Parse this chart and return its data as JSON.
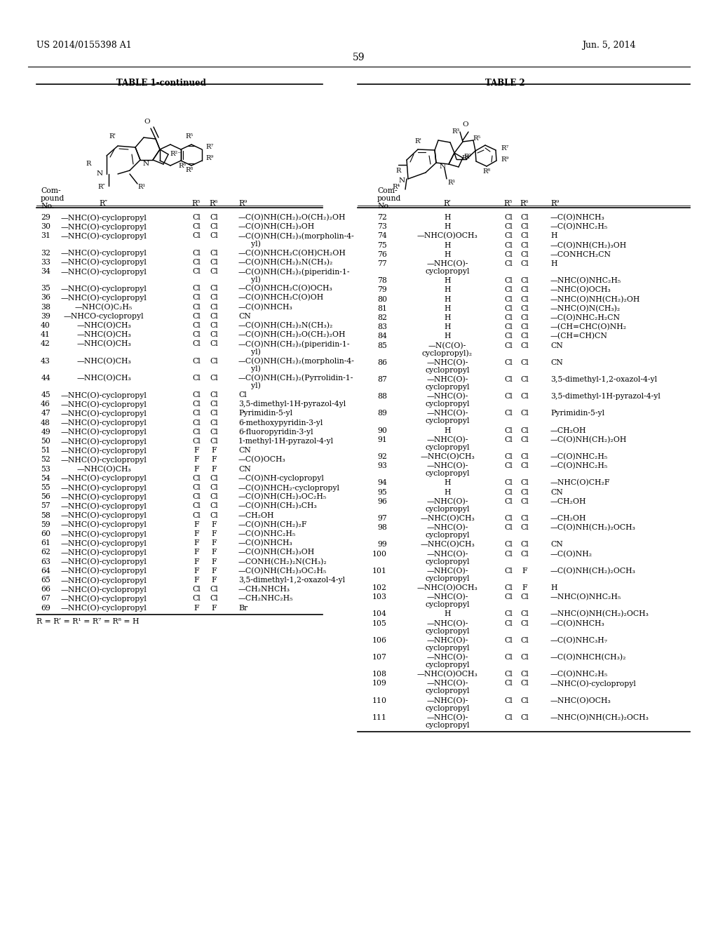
{
  "patent_number": "US 2014/0155398 A1",
  "patent_date": "Jun. 5, 2014",
  "page_number": "59",
  "table1_title": "TABLE 1-continued",
  "table2_title": "TABLE 2",
  "table1_footnote": "R = R’ = R¹ = R⁷ = R⁸ = H",
  "table1_rows": [
    [
      "29",
      "—NHC(O)-cyclopropyl",
      "Cl",
      "Cl",
      "—C(O)NH(CH₂)₂O(CH₂)₂OH"
    ],
    [
      "30",
      "—NHC(O)-cyclopropyl",
      "Cl",
      "Cl",
      "—C(O)NH(CH₂)₃OH"
    ],
    [
      "31",
      "—NHC(O)-cyclopropyl",
      "Cl",
      "Cl",
      "—C(O)NH(CH₂)₃(morpholin-4-\nyl)"
    ],
    [
      "32",
      "—NHC(O)-cyclopropyl",
      "Cl",
      "Cl",
      "—C(O)NHCH₂C(OH)CH₂OH"
    ],
    [
      "33",
      "—NHC(O)-cyclopropyl",
      "Cl",
      "Cl",
      "—C(O)NH(CH₂)₂N(CH₃)₂"
    ],
    [
      "34",
      "—NHC(O)-cyclopropyl",
      "Cl",
      "Cl",
      "—C(O)NH(CH₂)₂(piperidin-1-\nyl)"
    ],
    [
      "35",
      "—NHC(O)-cyclopropyl",
      "Cl",
      "Cl",
      "—C(O)NHCH₂C(O)OCH₃"
    ],
    [
      "36",
      "—NHC(O)-cyclopropyl",
      "Cl",
      "Cl",
      "—C(O)NHCH₂C(O)OH"
    ],
    [
      "38",
      "—NHC(O)C₂H₅",
      "Cl",
      "Cl",
      "—C(O)NHCH₃"
    ],
    [
      "39",
      "—NHCO-cyclopropyl",
      "Cl",
      "Cl",
      "CN"
    ],
    [
      "40",
      "—NHC(O)CH₃",
      "Cl",
      "Cl",
      "—C(O)NH(CH₂)₂N(CH₃)₂"
    ],
    [
      "41",
      "—NHC(O)CH₃",
      "Cl",
      "Cl",
      "—C(O)NH(CH₂)₂O(CH₂)₂OH"
    ],
    [
      "42",
      "—NHC(O)CH₃",
      "Cl",
      "Cl",
      "—C(O)NH(CH₂)₂(piperidin-1-\nyl)"
    ],
    [
      "43",
      "—NHC(O)CH₃",
      "Cl",
      "Cl",
      "—C(O)NH(CH₂)₂(morpholin-4-\nyl)"
    ],
    [
      "44",
      "—NHC(O)CH₃",
      "Cl",
      "Cl",
      "—C(O)NH(CH₂)₂(Pyrrolidin-1-\nyl)"
    ],
    [
      "45",
      "—NHC(O)-cyclopropyl",
      "Cl",
      "Cl",
      "Cl"
    ],
    [
      "46",
      "—NHC(O)-cyclopropyl",
      "Cl",
      "Cl",
      "3,5-dimethyl-1H-pyrazol-4yl"
    ],
    [
      "47",
      "—NHC(O)-cyclopropyl",
      "Cl",
      "Cl",
      "Pyrimidin-5-yl"
    ],
    [
      "48",
      "—NHC(O)-cyclopropyl",
      "Cl",
      "Cl",
      "6-methoxypyridin-3-yl"
    ],
    [
      "49",
      "—NHC(O)-cyclopropyl",
      "Cl",
      "Cl",
      "6-fluoropyridin-3-yl"
    ],
    [
      "50",
      "—NHC(O)-cyclopropyl",
      "Cl",
      "Cl",
      "1-methyl-1H-pyrazol-4-yl"
    ],
    [
      "51",
      "—NHC(O)-cyclopropyl",
      "F",
      "F",
      "CN"
    ],
    [
      "52",
      "—NHC(O)-cyclopropyl",
      "F",
      "F",
      "—C(O)OCH₃"
    ],
    [
      "53",
      "—NHC(O)CH₃",
      "F",
      "F",
      "CN"
    ],
    [
      "54",
      "—NHC(O)-cyclopropyl",
      "Cl",
      "Cl",
      "—C(O)NH-cyclopropyl"
    ],
    [
      "55",
      "—NHC(O)-cyclopropyl",
      "Cl",
      "Cl",
      "—C(O)NHCH₂-cyclopropyl"
    ],
    [
      "56",
      "—NHC(O)-cyclopropyl",
      "Cl",
      "Cl",
      "—C(O)NH(CH₂)₃OC₂H₅"
    ],
    [
      "57",
      "—NHC(O)-cyclopropyl",
      "Cl",
      "Cl",
      "—C(O)NH(CH₂)₃CH₃"
    ],
    [
      "58",
      "—NHC(O)-cyclopropyl",
      "Cl",
      "Cl",
      "—CH₂OH"
    ],
    [
      "59",
      "—NHC(O)-cyclopropyl",
      "F",
      "F",
      "—C(O)NH(CH₂)₂F"
    ],
    [
      "60",
      "—NHC(O)-cyclopropyl",
      "F",
      "F",
      "—C(O)NHC₂H₅"
    ],
    [
      "61",
      "—NHC(O)-cyclopropyl",
      "F",
      "F",
      "—C(O)NHCH₃"
    ],
    [
      "62",
      "—NHC(O)-cyclopropyl",
      "F",
      "F",
      "—C(O)NH(CH₂)₃OH"
    ],
    [
      "63",
      "—NHC(O)-cyclopropyl",
      "F",
      "F",
      "—CONH(CH₂)₂N(CH₃)₂"
    ],
    [
      "64",
      "—NHC(O)-cyclopropyl",
      "F",
      "F",
      "—C(O)NH(CH₂)₃OC₂H₅"
    ],
    [
      "65",
      "—NHC(O)-cyclopropyl",
      "F",
      "F",
      "3,5-dimethyl-1,2-oxazol-4-yl"
    ],
    [
      "66",
      "—NHC(O)-cyclopropyl",
      "Cl",
      "Cl",
      "—CH₂NHCH₃"
    ],
    [
      "67",
      "—NHC(O)-cyclopropyl",
      "Cl",
      "Cl",
      "—CH₂NHC₂H₅"
    ],
    [
      "69",
      "—NHC(O)-cyclopropyl",
      "F",
      "F",
      "Br"
    ]
  ],
  "table2_rows": [
    [
      "72",
      "H",
      "Cl",
      "Cl",
      "—C(O)NHCH₃"
    ],
    [
      "73",
      "H",
      "Cl",
      "Cl",
      "—C(O)NHC₂H₅"
    ],
    [
      "74",
      "—NHC(O)OCH₃",
      "Cl",
      "Cl",
      "H"
    ],
    [
      "75",
      "H",
      "Cl",
      "Cl",
      "—C(O)NH(CH₂)₃OH"
    ],
    [
      "76",
      "H",
      "Cl",
      "Cl",
      "—CONHCH₂CN"
    ],
    [
      "77",
      "—NHC(O)-\ncyclopropyl",
      "Cl",
      "Cl",
      "H"
    ],
    [
      "78",
      "H",
      "Cl",
      "Cl",
      "—NHC(O)NHC₂H₅"
    ],
    [
      "79",
      "H",
      "Cl",
      "Cl",
      "—NHC(O)OCH₃"
    ],
    [
      "80",
      "H",
      "Cl",
      "Cl",
      "—NHC(O)NH(CH₂)₂OH"
    ],
    [
      "81",
      "H",
      "Cl",
      "Cl",
      "—NHC(O)N(CH₃)₂"
    ],
    [
      "82",
      "H",
      "Cl",
      "Cl",
      "—C(O)NHC₂H₂CN"
    ],
    [
      "83",
      "H",
      "Cl",
      "Cl",
      "—(CH=CHC(O)NH₂"
    ],
    [
      "84",
      "H",
      "Cl",
      "Cl",
      "—(CH=CH)CN"
    ],
    [
      "85",
      "—N(C(O)-\ncyclopropyl)₂",
      "Cl",
      "Cl",
      "CN"
    ],
    [
      "86",
      "—NHC(O)-\ncyclopropyl",
      "Cl",
      "Cl",
      "CN"
    ],
    [
      "87",
      "—NHC(O)-\ncyclopropyl",
      "Cl",
      "Cl",
      "3,5-dimethyl-1,2-oxazol-4-yl"
    ],
    [
      "88",
      "—NHC(O)-\ncyclopropyl",
      "Cl",
      "Cl",
      "3,5-dimethyl-1H-pyrazol-4-yl"
    ],
    [
      "89",
      "—NHC(O)-\ncyclopropyl",
      "Cl",
      "Cl",
      "Pyrimidin-5-yl"
    ],
    [
      "90",
      "H",
      "Cl",
      "Cl",
      "—CH₂OH"
    ],
    [
      "91",
      "—NHC(O)-\ncyclopropyl",
      "Cl",
      "Cl",
      "—C(O)NH(CH₂)₂OH"
    ],
    [
      "92",
      "—NHC(O)CH₃",
      "Cl",
      "Cl",
      "—C(O)NHC₂H₅"
    ],
    [
      "93",
      "—NHC(O)-\ncyclopropyl",
      "Cl",
      "Cl",
      "—C(O)NHC₂H₅"
    ],
    [
      "94",
      "H",
      "Cl",
      "Cl",
      "—NHC(O)CH₂F"
    ],
    [
      "95",
      "H",
      "Cl",
      "Cl",
      "CN"
    ],
    [
      "96",
      "—NHC(O)-\ncyclopropyl",
      "Cl",
      "Cl",
      "—CH₂OH"
    ],
    [
      "97",
      "—NHC(O)CH₃",
      "Cl",
      "Cl",
      "—CH₂OH"
    ],
    [
      "98",
      "—NHC(O)-\ncyclopropyl",
      "Cl",
      "Cl",
      "—C(O)NH(CH₂)₂OCH₃"
    ],
    [
      "99",
      "—NHC(O)CH₃",
      "Cl",
      "Cl",
      "CN"
    ],
    [
      "100",
      "—NHC(O)-\ncyclopropyl",
      "Cl",
      "Cl",
      "—C(O)NH₂"
    ],
    [
      "101",
      "—NHC(O)-\ncyclopropyl",
      "Cl",
      "F",
      "—C(O)NH(CH₂)₂OCH₃"
    ],
    [
      "102",
      "—NHC(O)OCH₃",
      "Cl",
      "F",
      "H"
    ],
    [
      "103",
      "—NHC(O)-\ncyclopropyl",
      "Cl",
      "Cl",
      "—NHC(O)NHC₂H₅"
    ],
    [
      "104",
      "H",
      "Cl",
      "Cl",
      "—NHC(O)NH(CH₂)₂OCH₃"
    ],
    [
      "105",
      "—NHC(O)-\ncyclopropyl",
      "Cl",
      "Cl",
      "—C(O)NHCH₃"
    ],
    [
      "106",
      "—NHC(O)-\ncyclopropyl",
      "Cl",
      "Cl",
      "—C(O)NHC₃H₇"
    ],
    [
      "107",
      "—NHC(O)-\ncyclopropyl",
      "Cl",
      "Cl",
      "—C(O)NHCH(CH₃)₂"
    ],
    [
      "108",
      "—NHC(O)OCH₃",
      "Cl",
      "Cl",
      "—C(O)NHC₂H₅"
    ],
    [
      "109",
      "—NHC(O)-\ncyclopropyl",
      "Cl",
      "Cl",
      "—NHC(O)-cyclopropyl"
    ],
    [
      "110",
      "—NHC(O)-\ncyclopropyl",
      "Cl",
      "Cl",
      "—NHC(O)OCH₃"
    ],
    [
      "111",
      "—NHC(O)-\ncyclopropyl",
      "Cl",
      "Cl",
      "—NHC(O)NH(CH₂)₂OCH₃"
    ]
  ]
}
